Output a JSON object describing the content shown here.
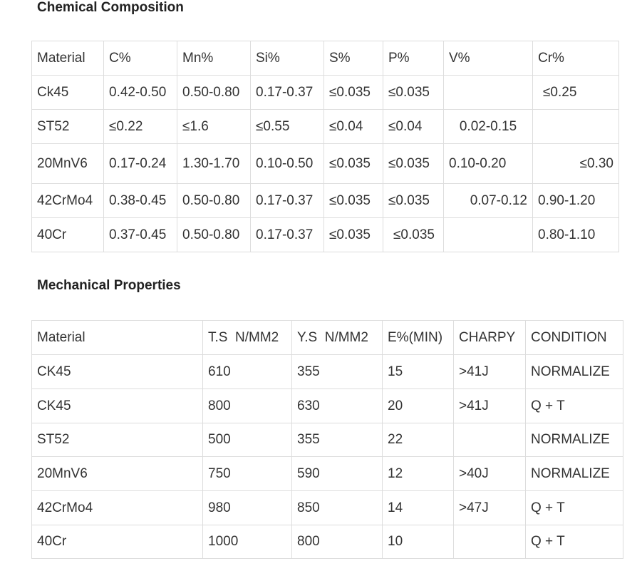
{
  "composition": {
    "title": "Chemical Composition",
    "header": [
      "Material",
      "C%",
      "Mn%",
      "Si%",
      "S%",
      "P%",
      "V%",
      "Cr%"
    ],
    "rows": [
      [
        "Ck45",
        "0.42-0.50",
        "0.50-0.80",
        "0.17-0.37",
        "≤0.035",
        "≤0.035",
        null,
        "≤0.25"
      ],
      [
        "ST52",
        "≤0.22",
        "≤1.6",
        "≤0.55",
        "≤0.04",
        "≤0.04",
        "0.02-0.15",
        null
      ],
      [
        "20MnV6",
        "0.17-0.24",
        "1.30-1.70",
        "0.10-0.50",
        "≤0.035",
        "≤0.035",
        "0.10-0.20",
        "≤0.30"
      ],
      [
        "42CrMo4",
        "0.38-0.45",
        "0.50-0.80",
        "0.17-0.37",
        "≤0.035",
        "≤0.035",
        "0.07-0.12",
        "0.90-1.20"
      ],
      [
        "40Cr",
        "0.37-0.45",
        "0.50-0.80",
        "0.17-0.37",
        "≤0.035",
        "≤0.035",
        null,
        "0.80-1.10"
      ]
    ]
  },
  "mechanical": {
    "title": "Mechanical Properties",
    "header": [
      "Material",
      "T.S  N/MM2",
      "Y.S  N/MM2",
      "E%(MIN)",
      "CHARPY",
      "CONDITION"
    ],
    "rows": [
      [
        "CK45",
        "610",
        "355",
        "15",
        ">41J",
        "NORMALIZE"
      ],
      [
        "CK45",
        "800",
        "630",
        "20",
        ">41J",
        "Q + T"
      ],
      [
        "ST52",
        "500",
        "355",
        "22",
        null,
        "NORMALIZE"
      ],
      [
        "20MnV6",
        "750",
        "590",
        "12",
        ">40J",
        "NORMALIZE"
      ],
      [
        "42CrMo4",
        "980",
        "850",
        "14",
        ">47J",
        "Q + T"
      ],
      [
        "40Cr",
        "1000",
        "800",
        "10",
        null,
        "Q + T"
      ]
    ]
  }
}
